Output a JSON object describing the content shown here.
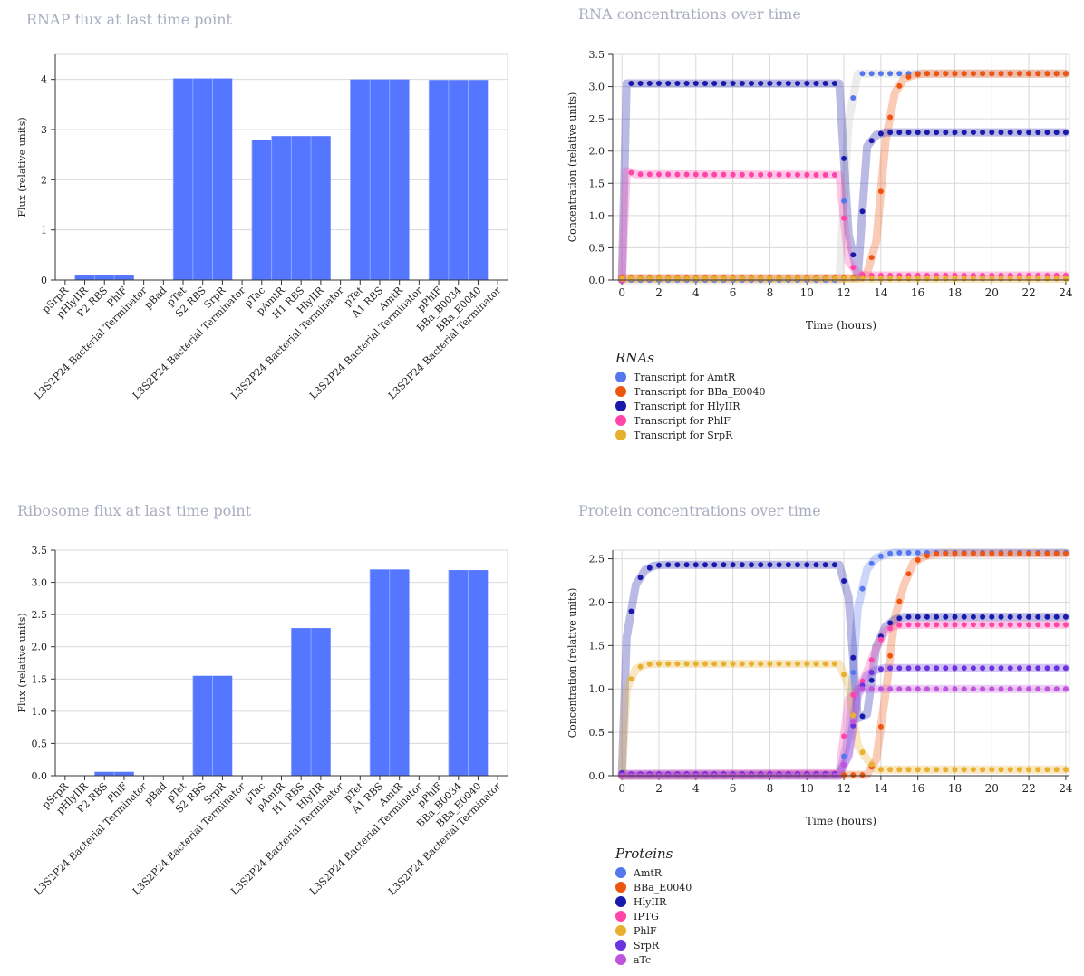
{
  "colors": {
    "bar": "#5577ff",
    "grid": "#d9d9d9",
    "title": "#a9adc0"
  },
  "chart_data": [
    {
      "id": "rnap",
      "type": "bar",
      "title": "RNAP flux at last time point",
      "ylabel": "Flux (relative units)",
      "xlabel": "",
      "ylim": [
        0,
        4.5
      ],
      "yticks": [
        0,
        1,
        2,
        3,
        4
      ],
      "ytick_labels": [
        "0",
        "1",
        "2",
        "3",
        "4"
      ],
      "grid": true,
      "categories": [
        "pSrpR",
        "pHlyIIR",
        "P2 RBS",
        "PhlF",
        "L3S2P24 Bacterial Terminator",
        "pBad",
        "pTet",
        "S2 RBS",
        "SrpR",
        "L3S2P24 Bacterial Terminator",
        "pTac",
        "pAmtR",
        "H1 RBS",
        "HlyIIR",
        "L3S2P24 Bacterial Terminator",
        "pTet",
        "A1 RBS",
        "AmtR",
        "L3S2P24 Bacterial Terminator",
        "pPhlF",
        "BBa_B0034",
        "BBa_E0040",
        "L3S2P24 Bacterial Terminator"
      ],
      "values": [
        0,
        0.09,
        0.09,
        0.09,
        0,
        0,
        4.02,
        4.02,
        4.02,
        0,
        2.8,
        2.87,
        2.87,
        2.87,
        0,
        4.0,
        4.0,
        4.0,
        0,
        3.99,
        3.99,
        3.99,
        0
      ]
    },
    {
      "id": "ribosome",
      "type": "bar",
      "title": "Ribosome flux at last time point",
      "ylabel": "Flux (relative units)",
      "xlabel": "",
      "ylim": [
        0,
        3.5
      ],
      "yticks": [
        0,
        0.5,
        1.0,
        1.5,
        2.0,
        2.5,
        3.0,
        3.5
      ],
      "ytick_labels": [
        "0.0",
        "0.5",
        "1.0",
        "1.5",
        "2.0",
        "2.5",
        "3.0",
        "3.5"
      ],
      "grid": true,
      "categories": [
        "pSrpR",
        "pHlyIIR",
        "P2 RBS",
        "PhlF",
        "L3S2P24 Bacterial Terminator",
        "pBad",
        "pTet",
        "S2 RBS",
        "SrpR",
        "L3S2P24 Bacterial Terminator",
        "pTac",
        "pAmtR",
        "H1 RBS",
        "HlyIIR",
        "L3S2P24 Bacterial Terminator",
        "pTet",
        "A1 RBS",
        "AmtR",
        "L3S2P24 Bacterial Terminator",
        "pPhlF",
        "BBa_B0034",
        "BBa_E0040",
        "L3S2P24 Bacterial Terminator"
      ],
      "values": [
        0,
        0,
        0.06,
        0.06,
        0,
        0,
        0,
        1.55,
        1.55,
        0,
        0,
        0,
        2.29,
        2.29,
        0,
        0,
        3.2,
        3.2,
        0,
        0,
        3.19,
        3.19,
        0
      ]
    },
    {
      "id": "rna",
      "type": "scatter",
      "title": "RNA concentrations over time",
      "xlabel": "Time (hours)",
      "ylabel": "Concentration (relative units)",
      "xlim": [
        -0.5,
        24.2
      ],
      "ylim": [
        0,
        3.5
      ],
      "xticks": [
        0,
        2,
        4,
        6,
        8,
        10,
        12,
        14,
        16,
        18,
        20,
        22,
        24
      ],
      "xtick_labels": [
        "0",
        "2",
        "4",
        "6",
        "8",
        "10",
        "12",
        "14",
        "16",
        "18",
        "20",
        "22",
        "24"
      ],
      "yticks": [
        0,
        0.5,
        1.0,
        1.5,
        2.0,
        2.5,
        3.0,
        3.5
      ],
      "ytick_labels": [
        "0.0",
        "0.5",
        "1.0",
        "1.5",
        "2.0",
        "2.5",
        "3.0",
        "3.5"
      ],
      "grid": true,
      "legend_title": "RNAs",
      "legend_position": "bottom",
      "series": [
        {
          "name": "Transcript for AmtR",
          "color": "#5577ee",
          "band_color": "#bfbfbf",
          "points": [
            [
              0,
              0
            ],
            [
              0.25,
              0
            ],
            [
              11.75,
              0
            ],
            [
              12.25,
              2.45
            ],
            [
              12.75,
              3.2
            ],
            [
              24,
              3.2
            ]
          ]
        },
        {
          "name": "Transcript for BBa_E0040",
          "color": "#ee5511",
          "points": [
            [
              0,
              0.03
            ],
            [
              0.25,
              0.03
            ],
            [
              11.75,
              0.03
            ],
            [
              12.25,
              0.03
            ],
            [
              12.75,
              0.03
            ],
            [
              13.25,
              0.1
            ],
            [
              13.75,
              0.6
            ],
            [
              14.25,
              2.15
            ],
            [
              14.75,
              2.9
            ],
            [
              15.25,
              3.12
            ],
            [
              15.75,
              3.18
            ],
            [
              16.25,
              3.2
            ],
            [
              24,
              3.2
            ]
          ]
        },
        {
          "name": "Transcript for HlyIIR",
          "color": "#1a1aaa",
          "points": [
            [
              0,
              0
            ],
            [
              0.25,
              3.05
            ],
            [
              11.75,
              3.05
            ],
            [
              12.25,
              0.72
            ],
            [
              12.75,
              0.06
            ],
            [
              13.25,
              2.07
            ],
            [
              13.75,
              2.25
            ],
            [
              14.25,
              2.29
            ],
            [
              24,
              2.29
            ]
          ]
        },
        {
          "name": "Transcript for PhlF",
          "color": "#ff44aa",
          "points": [
            [
              0,
              0
            ],
            [
              0.25,
              1.69
            ],
            [
              0.75,
              1.64
            ],
            [
              11.75,
              1.63
            ],
            [
              12.25,
              0.29
            ],
            [
              12.75,
              0.1
            ],
            [
              13.25,
              0.07
            ],
            [
              24,
              0.07
            ]
          ]
        },
        {
          "name": "Transcript for SrpR",
          "color": "#e8b030",
          "points": [
            [
              0,
              0.02
            ],
            [
              24,
              0.02
            ]
          ]
        }
      ]
    },
    {
      "id": "protein",
      "type": "scatter",
      "title": "Protein concentrations over time",
      "xlabel": "Time (hours)",
      "ylabel": "Concentration (relative units)",
      "xlim": [
        -0.5,
        24.2
      ],
      "ylim": [
        0,
        2.6
      ],
      "xticks": [
        0,
        2,
        4,
        6,
        8,
        10,
        12,
        14,
        16,
        18,
        20,
        22,
        24
      ],
      "xtick_labels": [
        "0",
        "2",
        "4",
        "6",
        "8",
        "10",
        "12",
        "14",
        "16",
        "18",
        "20",
        "22",
        "24"
      ],
      "yticks": [
        0,
        0.5,
        1.0,
        1.5,
        2.0,
        2.5
      ],
      "ytick_labels": [
        "0.0",
        "0.5",
        "1.0",
        "1.5",
        "2.0",
        "2.5"
      ],
      "grid": true,
      "legend_title": "Proteins",
      "legend_position": "bottom",
      "series": [
        {
          "name": "AmtR",
          "color": "#5577ee",
          "points": [
            [
              0,
              0
            ],
            [
              11.75,
              0
            ],
            [
              12.25,
              0.45
            ],
            [
              12.75,
              1.93
            ],
            [
              13.25,
              2.38
            ],
            [
              13.75,
              2.51
            ],
            [
              14.25,
              2.55
            ],
            [
              14.75,
              2.57
            ],
            [
              24,
              2.57
            ]
          ]
        },
        {
          "name": "BBa_E0040",
          "color": "#ee5511",
          "points": [
            [
              0,
              0
            ],
            [
              13.25,
              0.01
            ],
            [
              13.75,
              0.19
            ],
            [
              14.25,
              0.94
            ],
            [
              14.75,
              1.82
            ],
            [
              15.25,
              2.2
            ],
            [
              15.75,
              2.45
            ],
            [
              16.25,
              2.52
            ],
            [
              16.75,
              2.55
            ],
            [
              17.25,
              2.56
            ],
            [
              24,
              2.56
            ]
          ]
        },
        {
          "name": "HlyIIR",
          "color": "#1a1aaa",
          "points": [
            [
              0,
              0.03
            ],
            [
              0.25,
              1.59
            ],
            [
              0.75,
              2.2
            ],
            [
              1.25,
              2.37
            ],
            [
              1.75,
              2.42
            ],
            [
              2.25,
              2.43
            ],
            [
              11.75,
              2.43
            ],
            [
              12.25,
              2.06
            ],
            [
              12.75,
              0.66
            ],
            [
              13.25,
              0.71
            ],
            [
              13.75,
              1.49
            ],
            [
              14.25,
              1.72
            ],
            [
              14.75,
              1.8
            ],
            [
              15.25,
              1.83
            ],
            [
              24,
              1.83
            ]
          ]
        },
        {
          "name": "IPTG",
          "color": "#ff44aa",
          "points": [
            [
              0,
              0.02
            ],
            [
              11.75,
              0.03
            ],
            [
              12.25,
              0.88
            ],
            [
              12.75,
              0.98
            ],
            [
              13.25,
              1.2
            ],
            [
              13.75,
              1.47
            ],
            [
              14.25,
              1.67
            ],
            [
              14.75,
              1.73
            ],
            [
              15.25,
              1.74
            ],
            [
              24,
              1.74
            ]
          ]
        },
        {
          "name": "PhlF",
          "color": "#e8b030",
          "points": [
            [
              0,
              0
            ],
            [
              0.25,
              1.0
            ],
            [
              0.75,
              1.23
            ],
            [
              1.25,
              1.28
            ],
            [
              1.75,
              1.29
            ],
            [
              11.75,
              1.29
            ],
            [
              12.25,
              1.04
            ],
            [
              12.75,
              0.35
            ],
            [
              13.25,
              0.19
            ],
            [
              13.75,
              0.07
            ],
            [
              24,
              0.07
            ]
          ]
        },
        {
          "name": "SrpR",
          "color": "#6a33dd",
          "points": [
            [
              0,
              0.02
            ],
            [
              11.75,
              0.02
            ],
            [
              12.25,
              0.23
            ],
            [
              12.75,
              0.92
            ],
            [
              13.25,
              1.16
            ],
            [
              13.75,
              1.22
            ],
            [
              14.25,
              1.24
            ],
            [
              24,
              1.24
            ]
          ]
        },
        {
          "name": "aTc",
          "color": "#c055dd",
          "points": [
            [
              0,
              0
            ],
            [
              11.75,
              0
            ],
            [
              12.25,
              0.25
            ],
            [
              12.75,
              1.0
            ],
            [
              24,
              1.0
            ]
          ]
        }
      ]
    }
  ]
}
